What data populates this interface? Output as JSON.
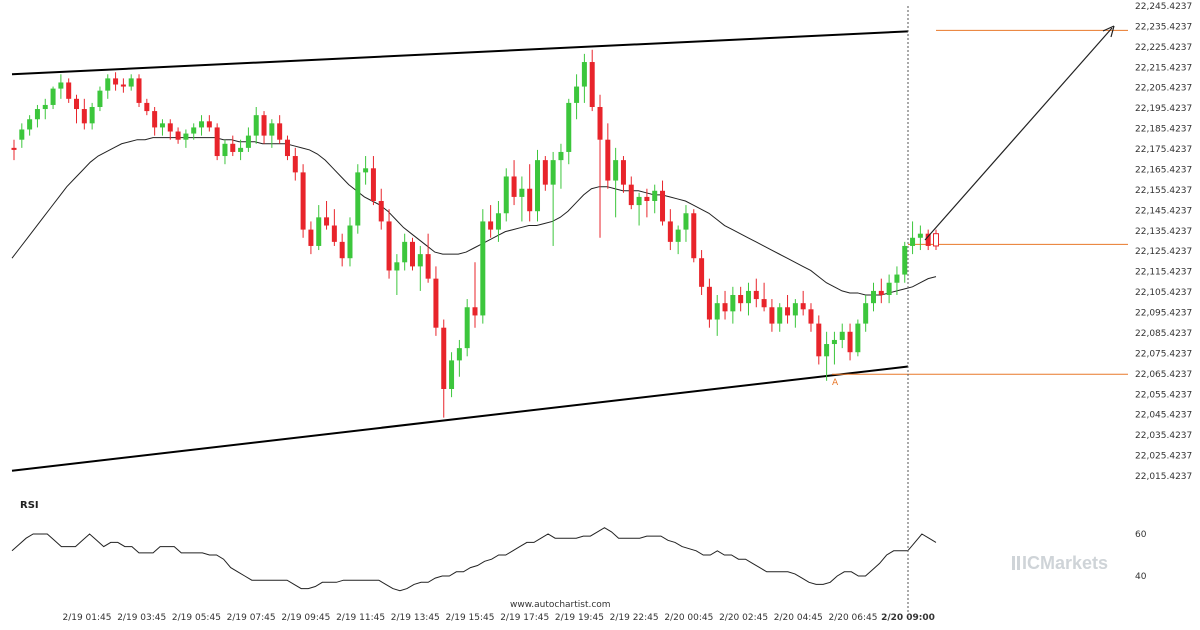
{
  "chart_data": {
    "type": "candlestick",
    "price_axis": {
      "ticks": [
        "22,245.4237",
        "22,235.4237",
        "22,225.4237",
        "22,215.4237",
        "22,205.4237",
        "22,195.4237",
        "22,185.4237",
        "22,175.4237",
        "22,165.4237",
        "22,155.4237",
        "22,145.4237",
        "22,135.4237",
        "22,125.4237",
        "22,115.4237",
        "22,105.4237",
        "22,095.4237",
        "22,085.4237",
        "22,075.4237",
        "22,065.4237",
        "22,055.4237",
        "22,045.4237",
        "22,035.4237",
        "22,025.4237",
        "22,015.4237"
      ],
      "range": [
        22015.4237,
        22245.4237
      ]
    },
    "time_axis": {
      "ticks": [
        "2/19 01:45",
        "2/19 03:45",
        "2/19 05:45",
        "2/19 07:45",
        "2/19 09:45",
        "2/19 11:45",
        "2/19 13:45",
        "2/19 15:45",
        "2/19 17:45",
        "2/19 19:45",
        "2/19 22:45",
        "2/20 00:45",
        "2/20 02:45",
        "2/20 04:45",
        "2/20 06:45",
        "2/20 09:00"
      ],
      "highlight": "2/20 09:00"
    },
    "candles": [
      [
        22176,
        22180,
        22170,
        22175
      ],
      [
        22180,
        22188,
        22176,
        22185
      ],
      [
        22185,
        22192,
        22182,
        22190
      ],
      [
        22190,
        22197,
        22186,
        22195
      ],
      [
        22195,
        22200,
        22190,
        22197
      ],
      [
        22197,
        22206,
        22195,
        22205
      ],
      [
        22205,
        22212,
        22200,
        22208
      ],
      [
        22208,
        22210,
        22198,
        22200
      ],
      [
        22200,
        22202,
        22188,
        22195
      ],
      [
        22195,
        22200,
        22185,
        22188
      ],
      [
        22188,
        22198,
        22185,
        22196
      ],
      [
        22196,
        22206,
        22194,
        22204
      ],
      [
        22204,
        22212,
        22200,
        22210
      ],
      [
        22210,
        22213,
        22204,
        22207
      ],
      [
        22207,
        22210,
        22203,
        22206
      ],
      [
        22206,
        22212,
        22204,
        22210
      ],
      [
        22210,
        22212,
        22196,
        22198
      ],
      [
        22198,
        22200,
        22192,
        22194
      ],
      [
        22194,
        22196,
        22182,
        22186
      ],
      [
        22186,
        22190,
        22182,
        22188
      ],
      [
        22188,
        22190,
        22180,
        22184
      ],
      [
        22184,
        22186,
        22178,
        22180
      ],
      [
        22180,
        22185,
        22176,
        22183
      ],
      [
        22183,
        22188,
        22180,
        22186
      ],
      [
        22186,
        22192,
        22182,
        22189
      ],
      [
        22189,
        22192,
        22184,
        22186
      ],
      [
        22186,
        22188,
        22170,
        22172
      ],
      [
        22172,
        22180,
        22168,
        22178
      ],
      [
        22178,
        22182,
        22172,
        22174
      ],
      [
        22174,
        22180,
        22170,
        22176
      ],
      [
        22176,
        22186,
        22174,
        22182
      ],
      [
        22182,
        22196,
        22178,
        22192
      ],
      [
        22192,
        22194,
        22178,
        22182
      ],
      [
        22182,
        22190,
        22176,
        22188
      ],
      [
        22188,
        22192,
        22178,
        22180
      ],
      [
        22180,
        22182,
        22170,
        22172
      ],
      [
        22172,
        22176,
        22160,
        22164
      ],
      [
        22164,
        22168,
        22132,
        22136
      ],
      [
        22136,
        22140,
        22124,
        22128
      ],
      [
        22128,
        22148,
        22126,
        22142
      ],
      [
        22142,
        22150,
        22136,
        22138
      ],
      [
        22138,
        22146,
        22128,
        22130
      ],
      [
        22130,
        22134,
        22118,
        22122
      ],
      [
        22122,
        22142,
        22118,
        22138
      ],
      [
        22138,
        22168,
        22134,
        22164
      ],
      [
        22164,
        22172,
        22158,
        22166
      ],
      [
        22166,
        22172,
        22148,
        22150
      ],
      [
        22150,
        22156,
        22136,
        22140
      ],
      [
        22140,
        22146,
        22112,
        22116
      ],
      [
        22116,
        22124,
        22104,
        22120
      ],
      [
        22120,
        22134,
        22116,
        22130
      ],
      [
        22130,
        22132,
        22116,
        22118
      ],
      [
        22118,
        22128,
        22106,
        22124
      ],
      [
        22124,
        22134,
        22110,
        22112
      ],
      [
        22112,
        22118,
        22084,
        22088
      ],
      [
        22088,
        22092,
        22044,
        22058
      ],
      [
        22058,
        22076,
        22054,
        22072
      ],
      [
        22072,
        22082,
        22064,
        22078
      ],
      [
        22078,
        22102,
        22074,
        22098
      ],
      [
        22098,
        22120,
        22088,
        22094
      ],
      [
        22094,
        22146,
        22090,
        22140
      ],
      [
        22140,
        22148,
        22132,
        22136
      ],
      [
        22136,
        22150,
        22130,
        22144
      ],
      [
        22144,
        22166,
        22140,
        22162
      ],
      [
        22162,
        22170,
        22148,
        22152
      ],
      [
        22152,
        22162,
        22140,
        22156
      ],
      [
        22156,
        22168,
        22140,
        22145
      ],
      [
        22145,
        22175,
        22140,
        22170
      ],
      [
        22170,
        22172,
        22155,
        22158
      ],
      [
        22158,
        22174,
        22128,
        22170
      ],
      [
        22170,
        22178,
        22156,
        22174
      ],
      [
        22174,
        22200,
        22168,
        22198
      ],
      [
        22198,
        22212,
        22190,
        22206
      ],
      [
        22206,
        22222,
        22198,
        22218
      ],
      [
        22218,
        22224,
        22194,
        22196
      ],
      [
        22196,
        22202,
        22132,
        22180
      ],
      [
        22180,
        22188,
        22156,
        22160
      ],
      [
        22160,
        22176,
        22142,
        22170
      ],
      [
        22170,
        22172,
        22154,
        22158
      ],
      [
        22158,
        22162,
        22146,
        22148
      ],
      [
        22148,
        22154,
        22138,
        22152
      ],
      [
        22152,
        22156,
        22142,
        22150
      ],
      [
        22150,
        22158,
        22144,
        22155
      ],
      [
        22155,
        22160,
        22138,
        22140
      ],
      [
        22140,
        22146,
        22126,
        22130
      ],
      [
        22130,
        22138,
        22124,
        22136
      ],
      [
        22136,
        22148,
        22130,
        22144
      ],
      [
        22144,
        22146,
        22120,
        22122
      ],
      [
        22122,
        22126,
        22104,
        22108
      ],
      [
        22108,
        22112,
        22088,
        22092
      ],
      [
        22092,
        22104,
        22084,
        22100
      ],
      [
        22100,
        22106,
        22092,
        22096
      ],
      [
        22096,
        22108,
        22090,
        22104
      ],
      [
        22104,
        22108,
        22096,
        22100
      ],
      [
        22100,
        22110,
        22094,
        22106
      ],
      [
        22106,
        22112,
        22098,
        22102
      ],
      [
        22102,
        22110,
        22096,
        22098
      ],
      [
        22098,
        22102,
        22086,
        22090
      ],
      [
        22090,
        22100,
        22086,
        22098
      ],
      [
        22098,
        22104,
        22090,
        22094
      ],
      [
        22094,
        22102,
        22088,
        22100
      ],
      [
        22100,
        22106,
        22094,
        22097
      ],
      [
        22097,
        22100,
        22086,
        22090
      ],
      [
        22090,
        22094,
        22070,
        22074
      ],
      [
        22074,
        22086,
        22062,
        22080
      ],
      [
        22080,
        22086,
        22070,
        22082
      ],
      [
        22082,
        22090,
        22078,
        22086
      ],
      [
        22086,
        22090,
        22072,
        22076
      ],
      [
        22076,
        22092,
        22074,
        22090
      ],
      [
        22090,
        22104,
        22086,
        22100
      ],
      [
        22100,
        22110,
        22096,
        22106
      ],
      [
        22106,
        22112,
        22100,
        22104
      ],
      [
        22104,
        22114,
        22100,
        22110
      ],
      [
        22110,
        22118,
        22104,
        22114
      ],
      [
        22114,
        22130,
        22110,
        22128
      ],
      [
        22128,
        22140,
        22124,
        22132
      ],
      [
        22132,
        22138,
        22126,
        22134
      ],
      [
        22134,
        22136,
        22126,
        22128
      ],
      [
        22134,
        22136,
        22126,
        22128
      ]
    ],
    "moving_average": [
      22122,
      22127,
      22132,
      22137,
      22142,
      22147,
      22152,
      22157,
      22161,
      22165,
      22169,
      22172,
      22174,
      22176,
      22178,
      22179,
      22180,
      22180,
      22181,
      22181,
      22181,
      22181,
      22181,
      22181,
      22181,
      22181,
      22181,
      22180,
      22180,
      22179,
      22179,
      22179,
      22178,
      22178,
      22178,
      22178,
      22177,
      22176,
      22175,
      22173,
      22170,
      22166,
      22162,
      22158,
      22155,
      22152,
      22150,
      22148,
      22145,
      22141,
      22137,
      22134,
      22131,
      22128,
      22125,
      22124,
      22124,
      22124,
      22125,
      22127,
      22129,
      22131,
      22133,
      22135,
      22136,
      22137,
      22138,
      22138,
      22139,
      22140,
      22142,
      22145,
      22149,
      22153,
      22156,
      22157,
      22157,
      22156,
      22155,
      22155,
      22155,
      22154,
      22153,
      22153,
      22152,
      22151,
      22150,
      22148,
      22146,
      22144,
      22141,
      22138,
      22136,
      22134,
      22132,
      22130,
      22128,
      22126,
      22124,
      22122,
      22120,
      22118,
      22116,
      22113,
      22110,
      22108,
      22106,
      22105,
      22105,
      22104,
      22104,
      22104,
      22105,
      22106,
      22107,
      22108,
      22110,
      22112,
      22113
    ],
    "channel": {
      "upper": [
        [
          22212,
          0
        ],
        [
          22233,
          1
        ]
      ],
      "lower": [
        [
          22018,
          0
        ],
        [
          22069,
          1
        ]
      ]
    },
    "levels": [
      22233.5,
      22128.8,
      22065.2
    ],
    "pattern_point_label": "A",
    "rsi": {
      "label": "RSI",
      "ticks": [
        "60",
        "40"
      ],
      "values": [
        52,
        55,
        58,
        60,
        60,
        60,
        57,
        54,
        54,
        54,
        57,
        60,
        57,
        54,
        56,
        56,
        54,
        54,
        51,
        51,
        51,
        54,
        54,
        54,
        51,
        51,
        51,
        51,
        50,
        50,
        48,
        44,
        42,
        40,
        38,
        38,
        38,
        38,
        38,
        38,
        36,
        34,
        34,
        35,
        37,
        37,
        37,
        38,
        38,
        38,
        38,
        38,
        38,
        36,
        34,
        33,
        34,
        36,
        37,
        37,
        39,
        40,
        40,
        42,
        42,
        44,
        45,
        47,
        48,
        50,
        50,
        52,
        54,
        56,
        56,
        58,
        60,
        58,
        58,
        58,
        58,
        59,
        59,
        61,
        63,
        61,
        58,
        58,
        58,
        58,
        59,
        59,
        59,
        57,
        56,
        54,
        53,
        52,
        50,
        50,
        52,
        50,
        50,
        48,
        48,
        46,
        44,
        42,
        42,
        42,
        42,
        41,
        39,
        37,
        36,
        36,
        37,
        40,
        42,
        42,
        40,
        40,
        43,
        46,
        50,
        52,
        52,
        52,
        56,
        60,
        58,
        56
      ]
    }
  },
  "footer": {
    "watermark": "www.autochartist.com",
    "brand": "ICMarkets"
  }
}
